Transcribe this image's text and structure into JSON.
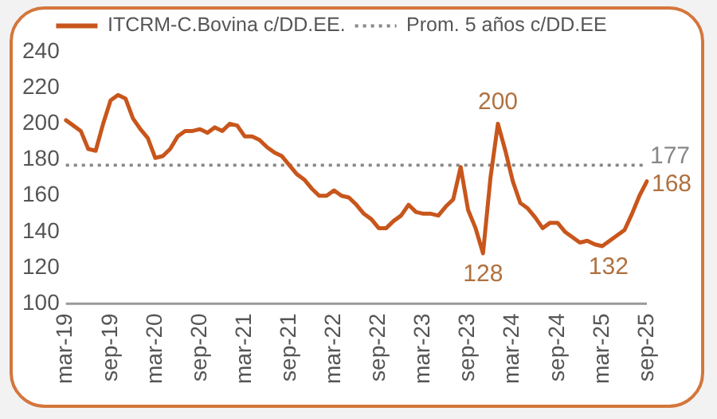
{
  "chart_data": {
    "type": "line",
    "categories": [
      "mar-19",
      null,
      null,
      null,
      null,
      null,
      "sep-19",
      null,
      null,
      null,
      null,
      null,
      "mar-20",
      null,
      null,
      null,
      null,
      null,
      "sep-20",
      null,
      null,
      null,
      null,
      null,
      "mar-21",
      null,
      null,
      null,
      null,
      null,
      "sep-21",
      null,
      null,
      null,
      null,
      null,
      "mar-22",
      null,
      null,
      null,
      null,
      null,
      "sep-22",
      null,
      null,
      null,
      null,
      null,
      "mar-23",
      null,
      null,
      null,
      null,
      null,
      "sep-23",
      null,
      null,
      null,
      null,
      null,
      "mar-24",
      null,
      null,
      null,
      null,
      null,
      "sep-24",
      null,
      null,
      null,
      null,
      null,
      "mar-25",
      null,
      null,
      null,
      null,
      null,
      "sep-25"
    ],
    "series": [
      {
        "name": "ITCRM-C.Bovina c/DD.EE.",
        "color": "#c8561c",
        "values": [
          202,
          199,
          196,
          186,
          185,
          200,
          213,
          216,
          214,
          203,
          197,
          192,
          181,
          182,
          186,
          193,
          196,
          196,
          197,
          195,
          198,
          196,
          200,
          199,
          193,
          193,
          191,
          187,
          184,
          182,
          177,
          172,
          169,
          164,
          160,
          160,
          163,
          160,
          159,
          155,
          150,
          147,
          142,
          142,
          146,
          149,
          155,
          151,
          150,
          150,
          149,
          154,
          158,
          176,
          152,
          142,
          128,
          170,
          200,
          185,
          168,
          156,
          153,
          148,
          142,
          145,
          145,
          140,
          137,
          134,
          135,
          133,
          132,
          135,
          138,
          141,
          150,
          160,
          168
        ],
        "value_labels": [
          null,
          null,
          null,
          null,
          null,
          null,
          null,
          null,
          null,
          null,
          null,
          null,
          null,
          null,
          null,
          null,
          null,
          null,
          null,
          null,
          null,
          null,
          null,
          null,
          null,
          null,
          null,
          null,
          null,
          null,
          null,
          null,
          null,
          null,
          null,
          null,
          null,
          null,
          null,
          null,
          null,
          null,
          null,
          null,
          null,
          null,
          null,
          null,
          null,
          null,
          null,
          null,
          null,
          null,
          null,
          null,
          "128",
          null,
          "200",
          null,
          null,
          null,
          null,
          null,
          null,
          null,
          null,
          null,
          null,
          null,
          null,
          null,
          "132",
          null,
          null,
          null,
          null,
          null,
          "168"
        ]
      }
    ],
    "ref_lines": [
      {
        "axis": "y",
        "value": 177,
        "label": "Prom. 5 años c/DD.EE",
        "color": "#888888",
        "line_style": "dotted"
      }
    ],
    "annotations": [
      "177"
    ],
    "ylim": [
      100,
      240
    ],
    "yticks": [
      100,
      120,
      140,
      160,
      180,
      200,
      220,
      240
    ],
    "grid": false,
    "legend": "top",
    "line_style": "solid",
    "marker": "none"
  }
}
